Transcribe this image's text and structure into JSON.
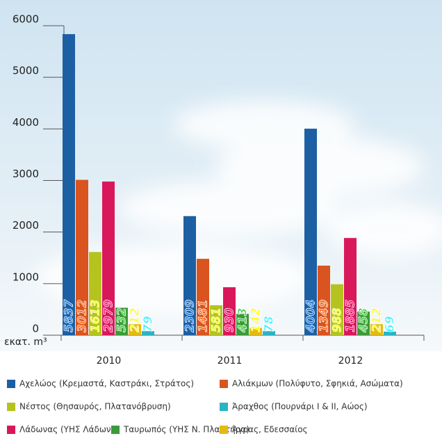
{
  "chart_data": {
    "type": "bar",
    "y_label": "εκατ. m³",
    "categories": [
      "2010",
      "2011",
      "2012"
    ],
    "series": [
      {
        "name": "Αχελώος (Κρεμαστά, Καστράκι, Στράτος)",
        "color": "#1d5fa3",
        "values": [
          5837,
          2309,
          4004
        ]
      },
      {
        "name": "Αλιάκμων (Πολύφυτο, Σφηκιά, Ασώματα)",
        "color": "#d9541e",
        "values": [
          3012,
          1481,
          1349
        ]
      },
      {
        "name": "Νέστος (Θησαυρός, Πλατανόβρυση)",
        "color": "#b5c31e",
        "values": [
          1613,
          581,
          988
        ]
      },
      {
        "name": "Λάδωνας (ΥΗΣ Λάδωνα)",
        "color": "#d8185a",
        "values": [
          2979,
          930,
          1885
        ]
      },
      {
        "name": "Ταυρωπός (ΥΗΣ Ν. Πλαστήρα)",
        "color": "#3c9a3a",
        "values": [
          532,
          413,
          458
        ]
      },
      {
        "name": "Άγρας, Εδεσσαίος",
        "color": "#e3bb10",
        "values": [
          212,
          142,
          212
        ]
      },
      {
        "name": "Άραχθος (Πουρνάρι Ι & ΙΙ, Αώος)",
        "color": "#2bb3c4",
        "values": [
          79,
          78,
          69
        ]
      }
    ],
    "ylim": [
      0,
      6000
    ],
    "yticks": [
      0,
      1000,
      2000,
      3000,
      4000,
      5000,
      6000
    ]
  }
}
